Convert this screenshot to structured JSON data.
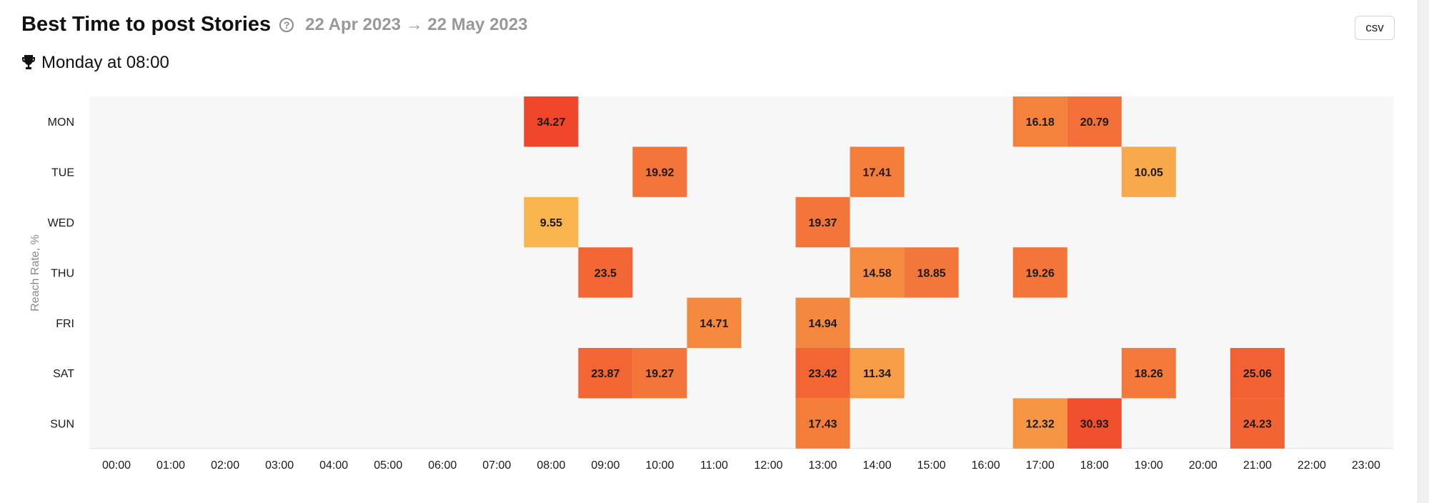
{
  "header": {
    "title": "Best Time to post Stories",
    "date_range": "22 Apr 2023 → 22 May 2023",
    "help_icon": "question-circle-icon",
    "csv_label": "csv"
  },
  "best_time": {
    "icon": "trophy-icon",
    "text": "Monday at 08:00"
  },
  "colors": {
    "plot_background": "#f7f7f7",
    "low": "#f9b44e",
    "high": "#ef462b"
  },
  "chart_data": {
    "type": "heatmap",
    "ylabel": "Reach Rate, %",
    "rows": [
      "MON",
      "TUE",
      "WED",
      "THU",
      "FRI",
      "SAT",
      "SUN"
    ],
    "columns": [
      "00:00",
      "01:00",
      "02:00",
      "03:00",
      "04:00",
      "05:00",
      "06:00",
      "07:00",
      "08:00",
      "09:00",
      "10:00",
      "11:00",
      "12:00",
      "13:00",
      "14:00",
      "15:00",
      "16:00",
      "17:00",
      "18:00",
      "19:00",
      "20:00",
      "21:00",
      "22:00",
      "23:00"
    ],
    "cells": [
      {
        "row": "MON",
        "col": "08:00",
        "value": 34.27
      },
      {
        "row": "MON",
        "col": "17:00",
        "value": 16.18
      },
      {
        "row": "MON",
        "col": "18:00",
        "value": 20.79
      },
      {
        "row": "TUE",
        "col": "10:00",
        "value": 19.92
      },
      {
        "row": "TUE",
        "col": "14:00",
        "value": 17.41
      },
      {
        "row": "TUE",
        "col": "19:00",
        "value": 10.05
      },
      {
        "row": "WED",
        "col": "08:00",
        "value": 9.55
      },
      {
        "row": "WED",
        "col": "13:00",
        "value": 19.37
      },
      {
        "row": "THU",
        "col": "09:00",
        "value": 23.5
      },
      {
        "row": "THU",
        "col": "14:00",
        "value": 14.58
      },
      {
        "row": "THU",
        "col": "15:00",
        "value": 18.85
      },
      {
        "row": "THU",
        "col": "17:00",
        "value": 19.26
      },
      {
        "row": "FRI",
        "col": "11:00",
        "value": 14.71
      },
      {
        "row": "FRI",
        "col": "13:00",
        "value": 14.94
      },
      {
        "row": "SAT",
        "col": "09:00",
        "value": 23.87
      },
      {
        "row": "SAT",
        "col": "10:00",
        "value": 19.27
      },
      {
        "row": "SAT",
        "col": "13:00",
        "value": 23.42
      },
      {
        "row": "SAT",
        "col": "14:00",
        "value": 11.34
      },
      {
        "row": "SAT",
        "col": "19:00",
        "value": 18.26
      },
      {
        "row": "SAT",
        "col": "21:00",
        "value": 25.06
      },
      {
        "row": "SUN",
        "col": "13:00",
        "value": 17.43
      },
      {
        "row": "SUN",
        "col": "17:00",
        "value": 12.32
      },
      {
        "row": "SUN",
        "col": "18:00",
        "value": 30.93
      },
      {
        "row": "SUN",
        "col": "21:00",
        "value": 24.23
      }
    ]
  }
}
